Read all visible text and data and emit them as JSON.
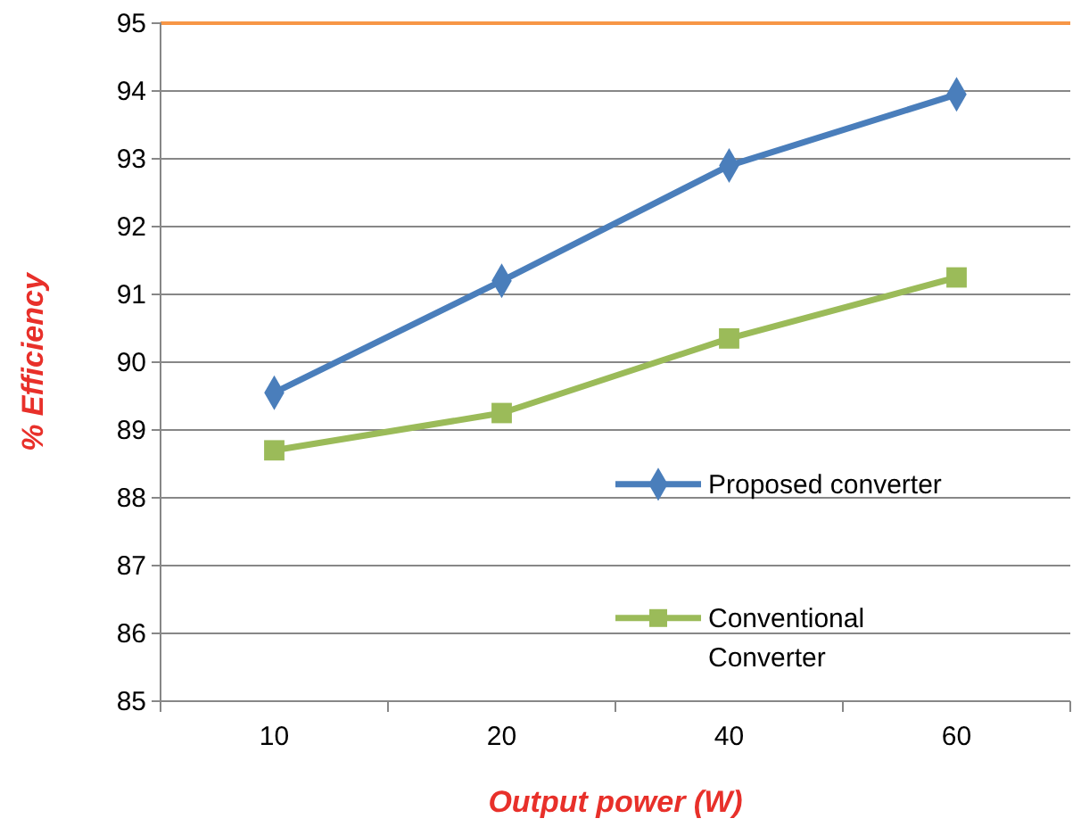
{
  "chart_data": {
    "type": "line",
    "xlabel": "Output power (W)",
    "ylabel": "% Efficiency",
    "categories": [
      "10",
      "20",
      "40",
      "60"
    ],
    "series": [
      {
        "name": "Proposed converter",
        "color": "#4a7ebb",
        "marker": "diamond",
        "values": [
          89.55,
          91.2,
          92.9,
          93.95
        ]
      },
      {
        "name": "Conventional Converter",
        "color": "#9bbb59",
        "marker": "square",
        "values": [
          88.7,
          89.25,
          90.35,
          91.25
        ]
      }
    ],
    "ylim": [
      85,
      95
    ],
    "yticks": [
      85,
      86,
      87,
      88,
      89,
      90,
      91,
      92,
      93,
      94,
      95
    ],
    "grid": "y",
    "legend": "right",
    "ref_lines": [
      {
        "axis": "y",
        "value": 95,
        "color": "#f79646"
      }
    ]
  }
}
